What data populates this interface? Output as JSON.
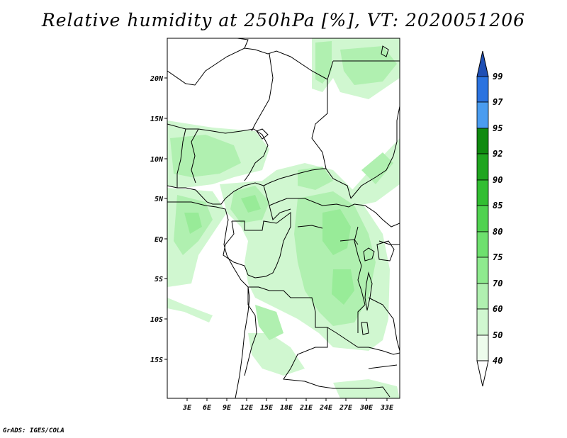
{
  "title": "Relative humidity at 250hPa [%], VT: 2020051206",
  "credit": "GrADS: IGES/COLA",
  "map": {
    "lat_labels": [
      "20N",
      "15N",
      "10N",
      "5N",
      "EQ",
      "5S",
      "10S",
      "15S"
    ],
    "lat_values": [
      20,
      15,
      10,
      5,
      0,
      -5,
      -10,
      -15
    ],
    "lon_labels": [
      "3E",
      "6E",
      "9E",
      "12E",
      "15E",
      "18E",
      "21E",
      "24E",
      "27E",
      "30E",
      "33E"
    ],
    "lon_values": [
      3,
      6,
      9,
      12,
      15,
      18,
      21,
      24,
      27,
      30,
      33
    ]
  },
  "colorbar": {
    "levels": [
      "99",
      "97",
      "95",
      "92",
      "90",
      "85",
      "80",
      "75",
      "70",
      "60",
      "50",
      "40"
    ],
    "colors": [
      "#1f4fb4",
      "#2b73e0",
      "#4a9cf0",
      "#0f8a0f",
      "#1fa51f",
      "#32be32",
      "#50d250",
      "#6ee06e",
      "#8eea8e",
      "#b0f0b0",
      "#d0f7d0",
      "#edfcec"
    ],
    "fill_colors": {
      "band_60_70": "#b0f0b0",
      "band_50_60": "#d0f7d0",
      "band_40_50": "#edfcec",
      "band_70_75": "#8eea8e"
    }
  }
}
